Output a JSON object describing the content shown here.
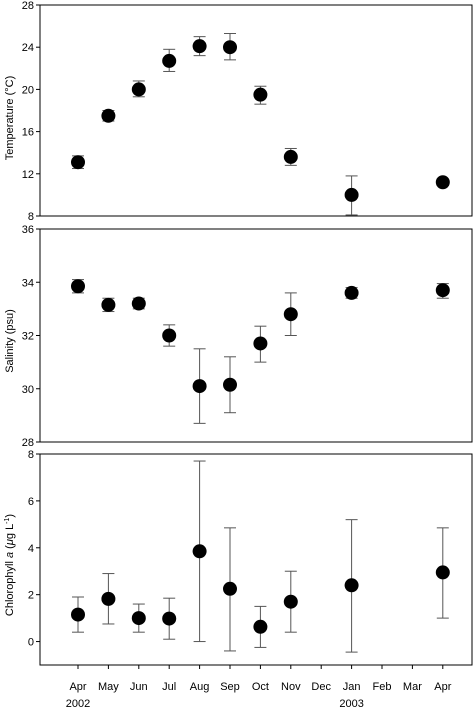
{
  "chart_data": [
    {
      "type": "scatter",
      "ylabel": "Temperature (°C)",
      "ylim": [
        8,
        28
      ],
      "yticks": [
        8,
        12,
        16,
        20,
        24,
        28
      ],
      "points": [
        {
          "month": "Apr 2002",
          "y": 13.1,
          "err_low": 12.5,
          "err_high": 13.7
        },
        {
          "month": "May 2002",
          "y": 17.5,
          "err_low": 17.0,
          "err_high": 18.0
        },
        {
          "month": "Jun 2002",
          "y": 20.0,
          "err_low": 19.3,
          "err_high": 20.8
        },
        {
          "month": "Jul 2002",
          "y": 22.7,
          "err_low": 21.7,
          "err_high": 23.8
        },
        {
          "month": "Aug 2002",
          "y": 24.1,
          "err_low": 23.2,
          "err_high": 25.0
        },
        {
          "month": "Sep 2002",
          "y": 24.0,
          "err_low": 22.8,
          "err_high": 25.3
        },
        {
          "month": "Oct 2002",
          "y": 19.5,
          "err_low": 18.6,
          "err_high": 20.3
        },
        {
          "month": "Nov 2002",
          "y": 13.6,
          "err_low": 12.8,
          "err_high": 14.4
        },
        {
          "month": "Jan 2003",
          "y": 10.0,
          "err_low": 8.1,
          "err_high": 11.8
        },
        {
          "month": "Apr 2003",
          "y": 11.2,
          "err_low": 10.9,
          "err_high": 11.5
        }
      ]
    },
    {
      "type": "scatter",
      "ylabel": "Salinity (psu)",
      "ylim": [
        28,
        36
      ],
      "yticks": [
        28,
        30,
        32,
        34,
        36
      ],
      "points": [
        {
          "month": "Apr 2002",
          "y": 33.85,
          "err_low": 33.6,
          "err_high": 34.1
        },
        {
          "month": "May 2002",
          "y": 33.15,
          "err_low": 32.9,
          "err_high": 33.4
        },
        {
          "month": "Jun 2002",
          "y": 33.2,
          "err_low": 33.0,
          "err_high": 33.4
        },
        {
          "month": "Jul 2002",
          "y": 32.0,
          "err_low": 31.6,
          "err_high": 32.4
        },
        {
          "month": "Aug 2002",
          "y": 30.1,
          "err_low": 28.7,
          "err_high": 31.5
        },
        {
          "month": "Sep 2002",
          "y": 30.15,
          "err_low": 29.1,
          "err_high": 31.2
        },
        {
          "month": "Oct 2002",
          "y": 31.7,
          "err_low": 31.0,
          "err_high": 32.35
        },
        {
          "month": "Nov 2002",
          "y": 32.8,
          "err_low": 32.0,
          "err_high": 33.6
        },
        {
          "month": "Jan 2003",
          "y": 33.6,
          "err_low": 33.4,
          "err_high": 33.8
        },
        {
          "month": "Apr 2003",
          "y": 33.7,
          "err_low": 33.4,
          "err_high": 33.95
        }
      ]
    },
    {
      "type": "scatter",
      "ylabel_prefix": "Chlorophyll ",
      "ylabel_italic": "a",
      "ylabel_unit_open": " (",
      "ylabel_unit_mu": "μ",
      "ylabel_unit_rest": "g L",
      "ylabel_unit_exp": "-1",
      "ylabel_unit_close": ")",
      "ylim": [
        -1,
        8
      ],
      "yticks": [
        0,
        2,
        4,
        6,
        8
      ],
      "points": [
        {
          "month": "Apr 2002",
          "y": 1.15,
          "err_low": 0.4,
          "err_high": 1.9
        },
        {
          "month": "May 2002",
          "y": 1.82,
          "err_low": 0.75,
          "err_high": 2.9
        },
        {
          "month": "Jun 2002",
          "y": 1.0,
          "err_low": 0.4,
          "err_high": 1.6
        },
        {
          "month": "Jul 2002",
          "y": 0.98,
          "err_low": 0.1,
          "err_high": 1.85
        },
        {
          "month": "Aug 2002",
          "y": 3.85,
          "err_low": 0.0,
          "err_high": 7.7
        },
        {
          "month": "Sep 2002",
          "y": 2.25,
          "err_low": -0.4,
          "err_high": 4.85
        },
        {
          "month": "Oct 2002",
          "y": 0.63,
          "err_low": -0.25,
          "err_high": 1.5
        },
        {
          "month": "Nov 2002",
          "y": 1.7,
          "err_low": 0.4,
          "err_high": 3.0
        },
        {
          "month": "Jan 2003",
          "y": 2.4,
          "err_low": -0.45,
          "err_high": 5.2
        },
        {
          "month": "Apr 2003",
          "y": 2.95,
          "err_low": 1.0,
          "err_high": 4.85
        }
      ]
    }
  ],
  "x_axis": {
    "months": [
      "Apr",
      "May",
      "Jun",
      "Jul",
      "Aug",
      "Sep",
      "Oct",
      "Nov",
      "Dec",
      "Jan",
      "Feb",
      "Mar",
      "Apr"
    ],
    "years": [
      {
        "label": "2002",
        "month_index": 0
      },
      {
        "label": "2003",
        "month_index": 9
      }
    ]
  }
}
